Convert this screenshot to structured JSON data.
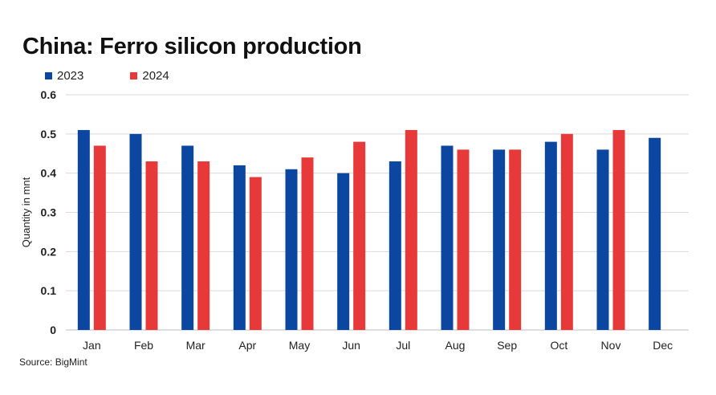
{
  "chart_data": {
    "type": "bar",
    "title": "China: Ferro silicon production",
    "xlabel": "",
    "ylabel": "Quantity in mnt",
    "ylim": [
      0,
      0.6
    ],
    "yticks": [
      "0",
      "0.1",
      "0.2",
      "0.3",
      "0.4",
      "0.5",
      "0.6"
    ],
    "grid": true,
    "legend_position": "top-left",
    "categories": [
      "Jan",
      "Feb",
      "Mar",
      "Apr",
      "May",
      "Jun",
      "Jul",
      "Aug",
      "Sep",
      "Oct",
      "Nov",
      "Dec"
    ],
    "series": [
      {
        "name": "2023",
        "color": "#0b46a0",
        "values": [
          0.51,
          0.5,
          0.47,
          0.42,
          0.41,
          0.4,
          0.43,
          0.47,
          0.46,
          0.48,
          0.46,
          0.49
        ]
      },
      {
        "name": "2024",
        "color": "#e8393a",
        "values": [
          0.47,
          0.43,
          0.43,
          0.39,
          0.44,
          0.48,
          0.51,
          0.46,
          0.46,
          0.5,
          0.51,
          null
        ]
      }
    ]
  },
  "source": "Source: BigMint"
}
